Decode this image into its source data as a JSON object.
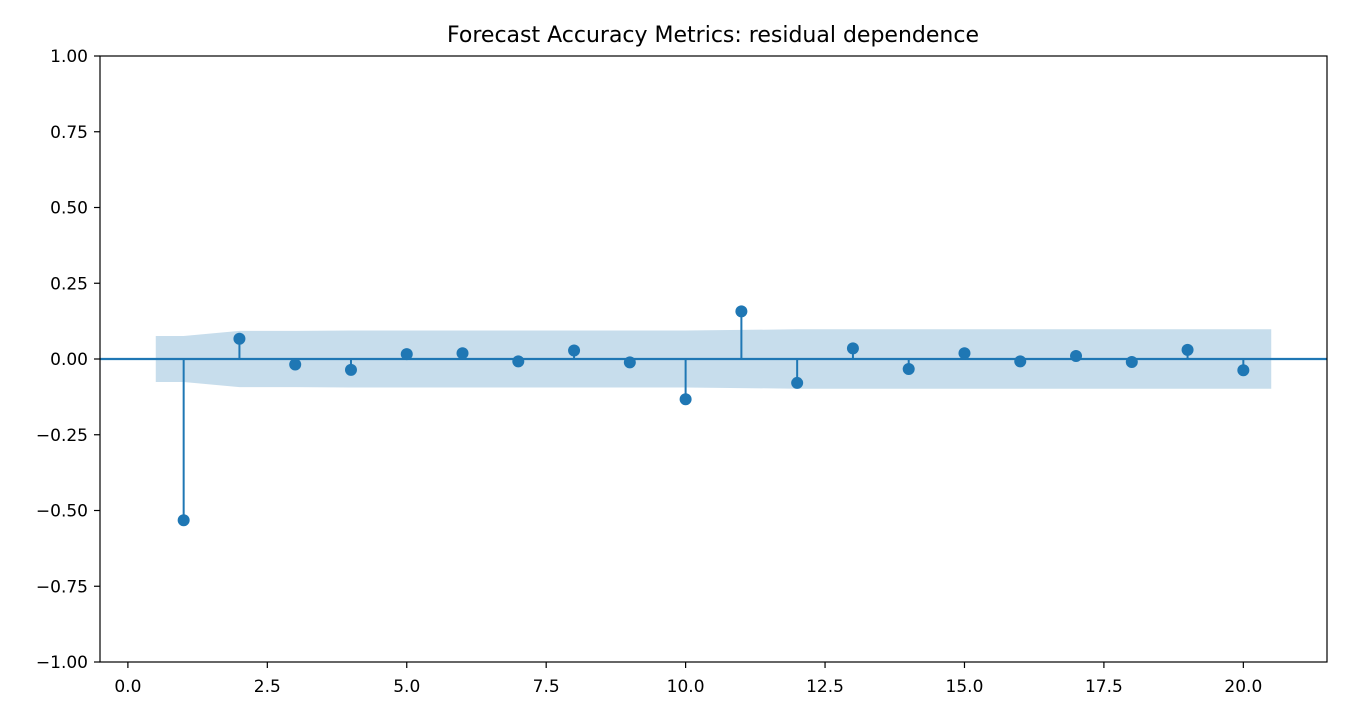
{
  "chart_data": {
    "type": "stem",
    "title": "Forecast Accuracy Metrics: residual dependence",
    "xlabel": "",
    "ylabel": "",
    "xlim": [
      -0.5,
      21.5
    ],
    "ylim": [
      -1.0,
      1.0
    ],
    "x_ticks": [
      0.0,
      2.5,
      5.0,
      7.5,
      10.0,
      12.5,
      15.0,
      17.5,
      20.0
    ],
    "x_tick_labels": [
      "0.0",
      "2.5",
      "5.0",
      "7.5",
      "10.0",
      "12.5",
      "15.0",
      "17.5",
      "20.0"
    ],
    "y_ticks": [
      1.0,
      0.75,
      0.5,
      0.25,
      0.0,
      -0.25,
      -0.5,
      -0.75,
      -1.0
    ],
    "y_tick_labels": [
      "1.00",
      "0.75",
      "0.50",
      "0.25",
      "0.00",
      "−0.25",
      "−0.50",
      "−0.75",
      "−1.00"
    ],
    "lags": [
      1,
      2,
      3,
      4,
      5,
      6,
      7,
      8,
      9,
      10,
      11,
      12,
      13,
      14,
      15,
      16,
      17,
      18,
      19,
      20
    ],
    "values": [
      -0.532,
      0.067,
      -0.018,
      -0.036,
      0.016,
      0.019,
      -0.008,
      0.028,
      -0.011,
      -0.133,
      0.157,
      -0.079,
      0.035,
      -0.033,
      0.019,
      -0.008,
      0.01,
      -0.01,
      0.03,
      -0.037
    ],
    "confidence_band": {
      "x": [
        0.5,
        1,
        2,
        3,
        4,
        5,
        6,
        7,
        8,
        9,
        10,
        11,
        12,
        13,
        14,
        15,
        16,
        17,
        18,
        19,
        20,
        20.5
      ],
      "upper": [
        0.076,
        0.076,
        0.093,
        0.093,
        0.094,
        0.094,
        0.094,
        0.094,
        0.094,
        0.094,
        0.094,
        0.096,
        0.098,
        0.098,
        0.098,
        0.098,
        0.098,
        0.098,
        0.098,
        0.098,
        0.098,
        0.098
      ]
    },
    "zero_line": 0,
    "grid": false,
    "colors": {
      "series": "#1f77b4",
      "band": "#1f77b4",
      "band_opacity": 0.25,
      "axis": "#000000",
      "background": "#ffffff"
    }
  }
}
